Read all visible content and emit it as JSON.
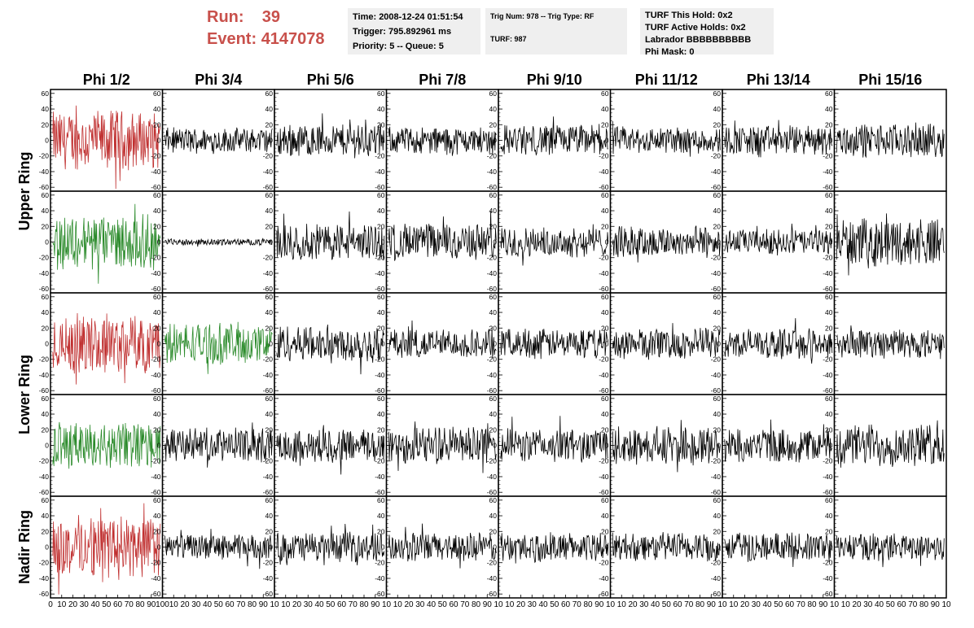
{
  "header": {
    "run_label": "Run:",
    "run_value": "39",
    "event_label": "Event:",
    "event_value": "4147078",
    "time": "Time: 2008-12-24 01:51:54",
    "trigger": "Trigger: 795.892961 ms",
    "priority_queue": "Priority: 5 -- Queue: 5",
    "trig_num_type": "Trig Num: 978 -- Trig Type: RF",
    "turf": "TURF: 987",
    "turf_this_hold": "TURF This Hold: 0x2",
    "turf_active_holds": "TURF Active Holds: 0x2",
    "labrador": "Labrador BBBBBBBBBB",
    "phi_mask": "Phi Mask: 0"
  },
  "colors": {
    "highlight_red": "#c03030",
    "highlight_green": "#2a8a2a",
    "normal_trace": "#000000",
    "header_red": "#c8504b",
    "info_background": "#efefef"
  },
  "chart_data": {
    "type": "line",
    "layout": "grid",
    "columns": [
      "Phi 1/2",
      "Phi 3/4",
      "Phi 5/6",
      "Phi 7/8",
      "Phi 9/10",
      "Phi 11/12",
      "Phi 13/14",
      "Phi 15/16"
    ],
    "row_labels": [
      {
        "label": "Upper Ring",
        "rows": [
          0,
          1
        ]
      },
      {
        "label": "Lower Ring",
        "rows": [
          2,
          3
        ]
      },
      {
        "label": "Nadir Ring",
        "rows": [
          4
        ]
      }
    ],
    "ylim": [
      -65,
      65
    ],
    "yticks": [
      -60,
      -40,
      -20,
      0,
      20,
      40,
      60
    ],
    "xlim": [
      0,
      100
    ],
    "xticks": [
      0,
      10,
      20,
      30,
      40,
      50,
      60,
      70,
      80,
      90,
      100
    ],
    "xtick_labels_first": [
      "0",
      "10",
      "20",
      "30",
      "40",
      "50",
      "60",
      "70",
      "80",
      "90",
      "100"
    ],
    "xtick_labels_other": [
      "",
      "10",
      "20",
      "30",
      "40",
      "50",
      "60",
      "70",
      "80",
      "90",
      "10"
    ],
    "samples_per_trace": 180,
    "panels": [
      [
        {
          "color": "red",
          "amp": 28
        },
        {
          "color": "black",
          "amp": 12
        },
        {
          "color": "black",
          "amp": 16
        },
        {
          "color": "black",
          "amp": 13
        },
        {
          "color": "black",
          "amp": 15
        },
        {
          "color": "black",
          "amp": 13
        },
        {
          "color": "black",
          "amp": 14
        },
        {
          "color": "black",
          "amp": 16
        }
      ],
      [
        {
          "color": "green",
          "amp": 26
        },
        {
          "color": "black",
          "amp": 3
        },
        {
          "color": "black",
          "amp": 18
        },
        {
          "color": "black",
          "amp": 18
        },
        {
          "color": "black",
          "amp": 14
        },
        {
          "color": "black",
          "amp": 15
        },
        {
          "color": "black",
          "amp": 12
        },
        {
          "color": "black",
          "amp": 22
        }
      ],
      [
        {
          "color": "red",
          "amp": 28
        },
        {
          "color": "green",
          "amp": 20
        },
        {
          "color": "black",
          "amp": 18
        },
        {
          "color": "black",
          "amp": 14
        },
        {
          "color": "black",
          "amp": 14
        },
        {
          "color": "black",
          "amp": 15
        },
        {
          "color": "black",
          "amp": 14
        },
        {
          "color": "black",
          "amp": 14
        }
      ],
      [
        {
          "color": "green",
          "amp": 22
        },
        {
          "color": "black",
          "amp": 16
        },
        {
          "color": "black",
          "amp": 16
        },
        {
          "color": "black",
          "amp": 18
        },
        {
          "color": "black",
          "amp": 16
        },
        {
          "color": "black",
          "amp": 18
        },
        {
          "color": "black",
          "amp": 16
        },
        {
          "color": "black",
          "amp": 20
        }
      ],
      [
        {
          "color": "red",
          "amp": 30
        },
        {
          "color": "black",
          "amp": 12
        },
        {
          "color": "black",
          "amp": 14
        },
        {
          "color": "black",
          "amp": 14
        },
        {
          "color": "black",
          "amp": 14
        },
        {
          "color": "black",
          "amp": 14
        },
        {
          "color": "black",
          "amp": 14
        },
        {
          "color": "black",
          "amp": 13
        }
      ]
    ]
  }
}
